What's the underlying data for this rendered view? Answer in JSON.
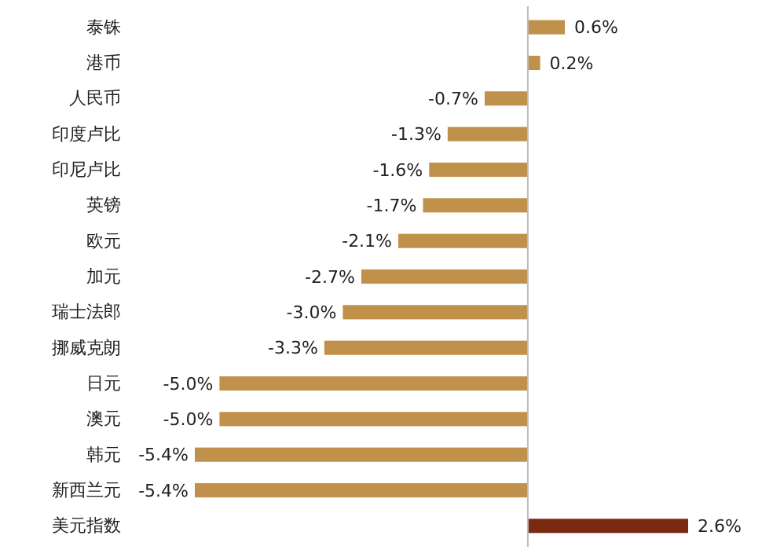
{
  "chart_data": {
    "type": "bar",
    "orientation": "horizontal",
    "categories": [
      "泰铢",
      "港币",
      "人民币",
      "印度卢比",
      "印尼卢比",
      "英镑",
      "欧元",
      "加元",
      "瑞士法郎",
      "挪威克朗",
      "日元",
      "澳元",
      "韩元",
      "新西兰元",
      "美元指数"
    ],
    "values": [
      0.6,
      0.2,
      -0.7,
      -1.3,
      -1.6,
      -1.7,
      -2.1,
      -2.7,
      -3.0,
      -3.3,
      -5.0,
      -5.0,
      -5.4,
      -5.4,
      2.6
    ],
    "colors": [
      "#c0914a",
      "#c0914a",
      "#c0914a",
      "#c0914a",
      "#c0914a",
      "#c0914a",
      "#c0914a",
      "#c0914a",
      "#c0914a",
      "#c0914a",
      "#c0914a",
      "#c0914a",
      "#c0914a",
      "#c0914a",
      "#7a2a10"
    ],
    "value_labels": [
      "0.6%",
      "0.2%",
      "-0.7%",
      "-1.3%",
      "-1.6%",
      "-1.7%",
      "-2.1%",
      "-2.7%",
      "-3.0%",
      "-3.3%",
      "-5.0%",
      "-5.0%",
      "-5.4%",
      "-5.4%",
      "2.6%"
    ]
  }
}
